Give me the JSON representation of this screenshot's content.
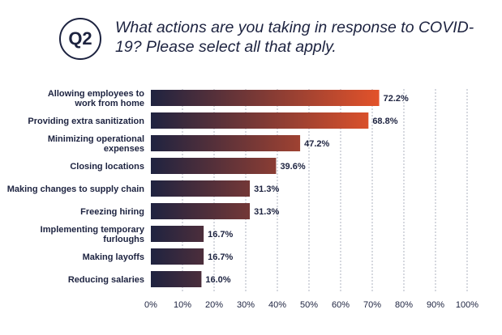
{
  "header": {
    "badge": "Q2",
    "title": "What actions are you taking in response to COVID-19? Please select all that apply."
  },
  "colors": {
    "bar_start": "#1f2340",
    "bar_end": "#e2522a",
    "text": "#1d2340"
  },
  "chart_data": {
    "type": "bar",
    "orientation": "horizontal",
    "categories": [
      [
        "Allowing employees to",
        "work from home"
      ],
      [
        "Providing extra sanitization"
      ],
      [
        "Minimizing operational",
        "expenses"
      ],
      [
        "Closing locations"
      ],
      [
        "Making changes to supply chain"
      ],
      [
        "Freezing hiring"
      ],
      [
        "Implementing temporary",
        "furloughs"
      ],
      [
        "Making layoffs"
      ],
      [
        "Reducing salaries"
      ]
    ],
    "values": [
      72.2,
      68.8,
      47.2,
      39.6,
      31.3,
      31.3,
      16.7,
      16.7,
      16.0
    ],
    "value_labels": [
      "72.2%",
      "68.8%",
      "47.2%",
      "39.6%",
      "31.3%",
      "31.3%",
      "16.7%",
      "16.7%",
      "16.0%"
    ],
    "xlim": [
      0,
      100
    ],
    "x_ticks": [
      "0%",
      "10%",
      "20%",
      "30%",
      "40%",
      "50%",
      "60%",
      "70%",
      "80%",
      "90%",
      "100%"
    ],
    "grid": true
  }
}
